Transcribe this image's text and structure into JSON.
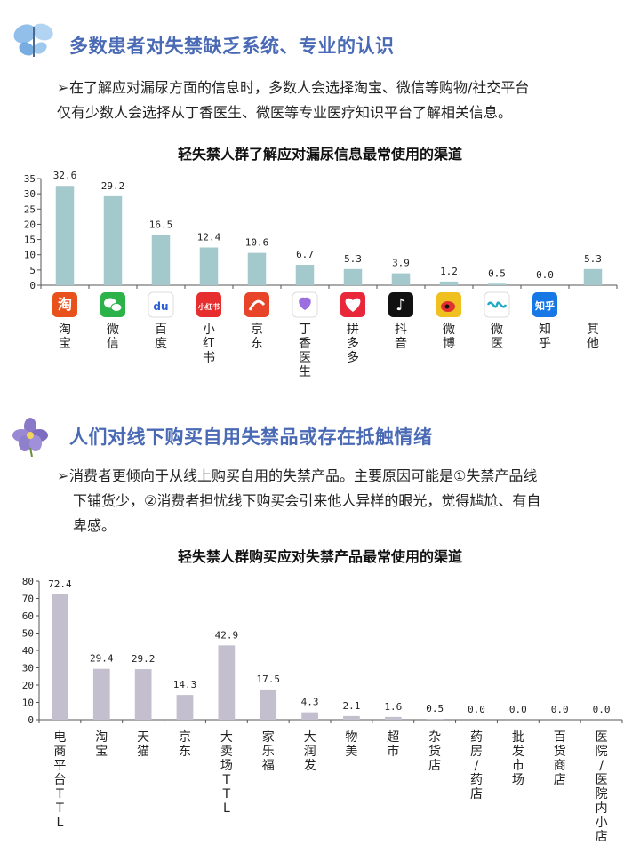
{
  "section1": {
    "heading": "多数患者对失禁缺乏系统、专业的认识",
    "bullet_line1": "在了解应对漏尿方面的信息时，多数人会选择淘宝、微信等购物/社交平台",
    "bullet_line2": "仅有少数人会选择从丁香医生、微医等专业医疗知识平台了解相关信息。",
    "chart_title": "轻失禁人群了解应对漏尿信息最常使用的渠道",
    "icon_colors": [
      "#e8501c",
      "#2bb34a",
      "#ffffff",
      "#e62e2e",
      "#e8442a",
      "#ffffff",
      "#e8283a",
      "#111111",
      "#f0c020",
      "#ffffff",
      "#1677e5",
      "#ffffff"
    ],
    "icon_names": [
      "taobao-icon",
      "wechat-icon",
      "baidu-icon",
      "xiaohongshu-icon",
      "jd-icon",
      "dingxiang-icon",
      "pinduoduo-icon",
      "douyin-icon",
      "weibo-icon",
      "weiyi-icon",
      "zhihu-icon",
      ""
    ],
    "icon_glyphs": [
      "淘",
      "",
      "du",
      "小红书",
      "",
      "",
      "",
      "",
      "",
      "",
      "知乎",
      ""
    ]
  },
  "section2": {
    "heading": "人们对线下购买自用失禁品或存在抵触情绪",
    "bullet_line1": "消费者更倾向于从线上购买自用的失禁产品。主要原因可能是①失禁产品线",
    "bullet_line2": "下铺货少，②消费者担忧线下购买会引来他人异样的眼光，觉得尴尬、有自",
    "bullet_line3": "卑感。",
    "chart_title": "轻失禁人群购买应对失禁产品最常使用的渠道"
  },
  "chart_data": [
    {
      "type": "bar",
      "title": "轻失禁人群了解应对漏尿信息最常使用的渠道",
      "categories": [
        "淘宝",
        "微信",
        "百度",
        "小红书",
        "京东",
        "丁香医生",
        "拼多多",
        "抖音",
        "微博",
        "微医",
        "知乎",
        "其他"
      ],
      "values": [
        32.6,
        29.2,
        16.5,
        12.4,
        10.6,
        6.7,
        5.3,
        3.9,
        1.2,
        0.5,
        0.0,
        5.3
      ],
      "value_labels": [
        "32.6",
        "29.2",
        "16.5",
        "12.4",
        "10.6",
        "6.7",
        "5.3",
        "3.9",
        "1.2",
        "0.5",
        "0.0",
        "5.3"
      ],
      "yticks": [
        "0",
        "5",
        "10",
        "15",
        "20",
        "25",
        "30",
        "35"
      ],
      "ylim": [
        0,
        35
      ],
      "color": "#a3c9cc",
      "xlabel": "",
      "ylabel": ""
    },
    {
      "type": "bar",
      "title": "轻失禁人群购买应对失禁产品最常使用的渠道",
      "categories": [
        "电商平台TTL",
        "淘宝",
        "天猫",
        "京东",
        "大卖场TTL",
        "家乐福",
        "大润发",
        "物美",
        "超市",
        "杂货店",
        "药房/药店",
        "批发市场",
        "百货商店",
        "医院/医院内小店"
      ],
      "values": [
        72.4,
        29.4,
        29.2,
        14.3,
        42.9,
        17.5,
        4.3,
        2.1,
        1.6,
        0.5,
        0.0,
        0.0,
        0.0,
        0.0
      ],
      "value_labels": [
        "72.4",
        "29.4",
        "29.2",
        "14.3",
        "42.9",
        "17.5",
        "4.3",
        "2.1",
        "1.6",
        "0.5",
        "0.0",
        "0.0",
        "0.0",
        "0.0"
      ],
      "yticks": [
        "0",
        "10",
        "20",
        "30",
        "40",
        "50",
        "60",
        "70",
        "80"
      ],
      "ylim": [
        0,
        80
      ],
      "color": "#c4bfcf",
      "xlabel": "",
      "ylabel": ""
    }
  ]
}
